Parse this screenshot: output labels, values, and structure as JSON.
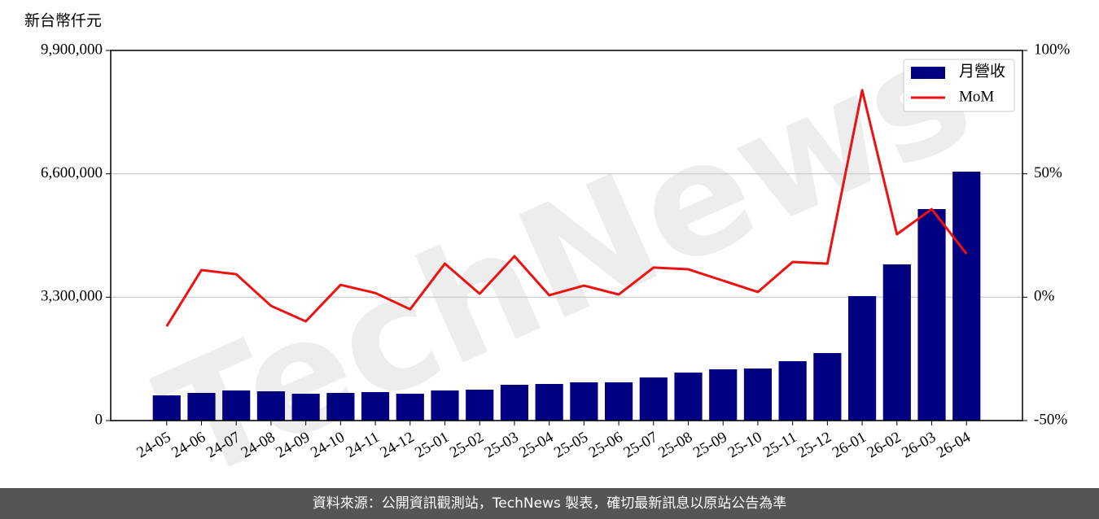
{
  "chart_data": {
    "type": "bar_line",
    "y_label": "新台幣仟元",
    "watermark": "TechNews",
    "source": "資料來源：公開資訊觀測站，TechNews 製表，確切最新訊息以原站公告為準",
    "categories": [
      "24-05",
      "24-06",
      "24-07",
      "24-08",
      "24-09",
      "24-10",
      "24-11",
      "24-12",
      "25-01",
      "25-02",
      "25-03",
      "25-04",
      "25-05",
      "25-06",
      "25-07",
      "25-08",
      "25-09",
      "25-10",
      "25-11",
      "25-12",
      "26-01",
      "26-02",
      "26-03",
      "26-04"
    ],
    "series": [
      {
        "name": "月營收",
        "color": "#000080",
        "axis": "y",
        "values": [
          674000,
          740000,
          805000,
          783000,
          718000,
          740000,
          762000,
          718000,
          805000,
          827000,
          957000,
          979000,
          1023000,
          1023000,
          1153000,
          1284000,
          1371000,
          1393000,
          1588000,
          1806000,
          3329000,
          4178000,
          5657000,
          6658000
        ]
      },
      {
        "name": "MoM",
        "color": "#ee1111",
        "axis": "y2",
        "values": [
          -11.8,
          11.0,
          9.3,
          -3.5,
          -9.8,
          5.0,
          1.7,
          -4.9,
          13.6,
          1.4,
          16.6,
          0.8,
          4.7,
          1.1,
          12.0,
          11.3,
          6.7,
          2.1,
          14.3,
          13.6,
          83.9,
          25.5,
          35.7,
          17.6
        ]
      }
    ],
    "ylim": [
      0,
      9900000
    ],
    "yticks": [
      0,
      {
        "value": 3300000,
        "label": "3,300,000"
      },
      {
        "value": 6600000,
        "label": "6,600,000"
      },
      {
        "value": 9900000,
        "label": "9,900,000"
      }
    ],
    "y2lim": [
      -50,
      100
    ],
    "y2ticks": [
      {
        "value": -50,
        "label": "-50%"
      },
      {
        "value": 0,
        "label": "0%"
      },
      {
        "value": 50,
        "label": "50%"
      },
      {
        "value": 100,
        "label": "100%"
      }
    ],
    "grid": true,
    "legend": "upper right"
  }
}
